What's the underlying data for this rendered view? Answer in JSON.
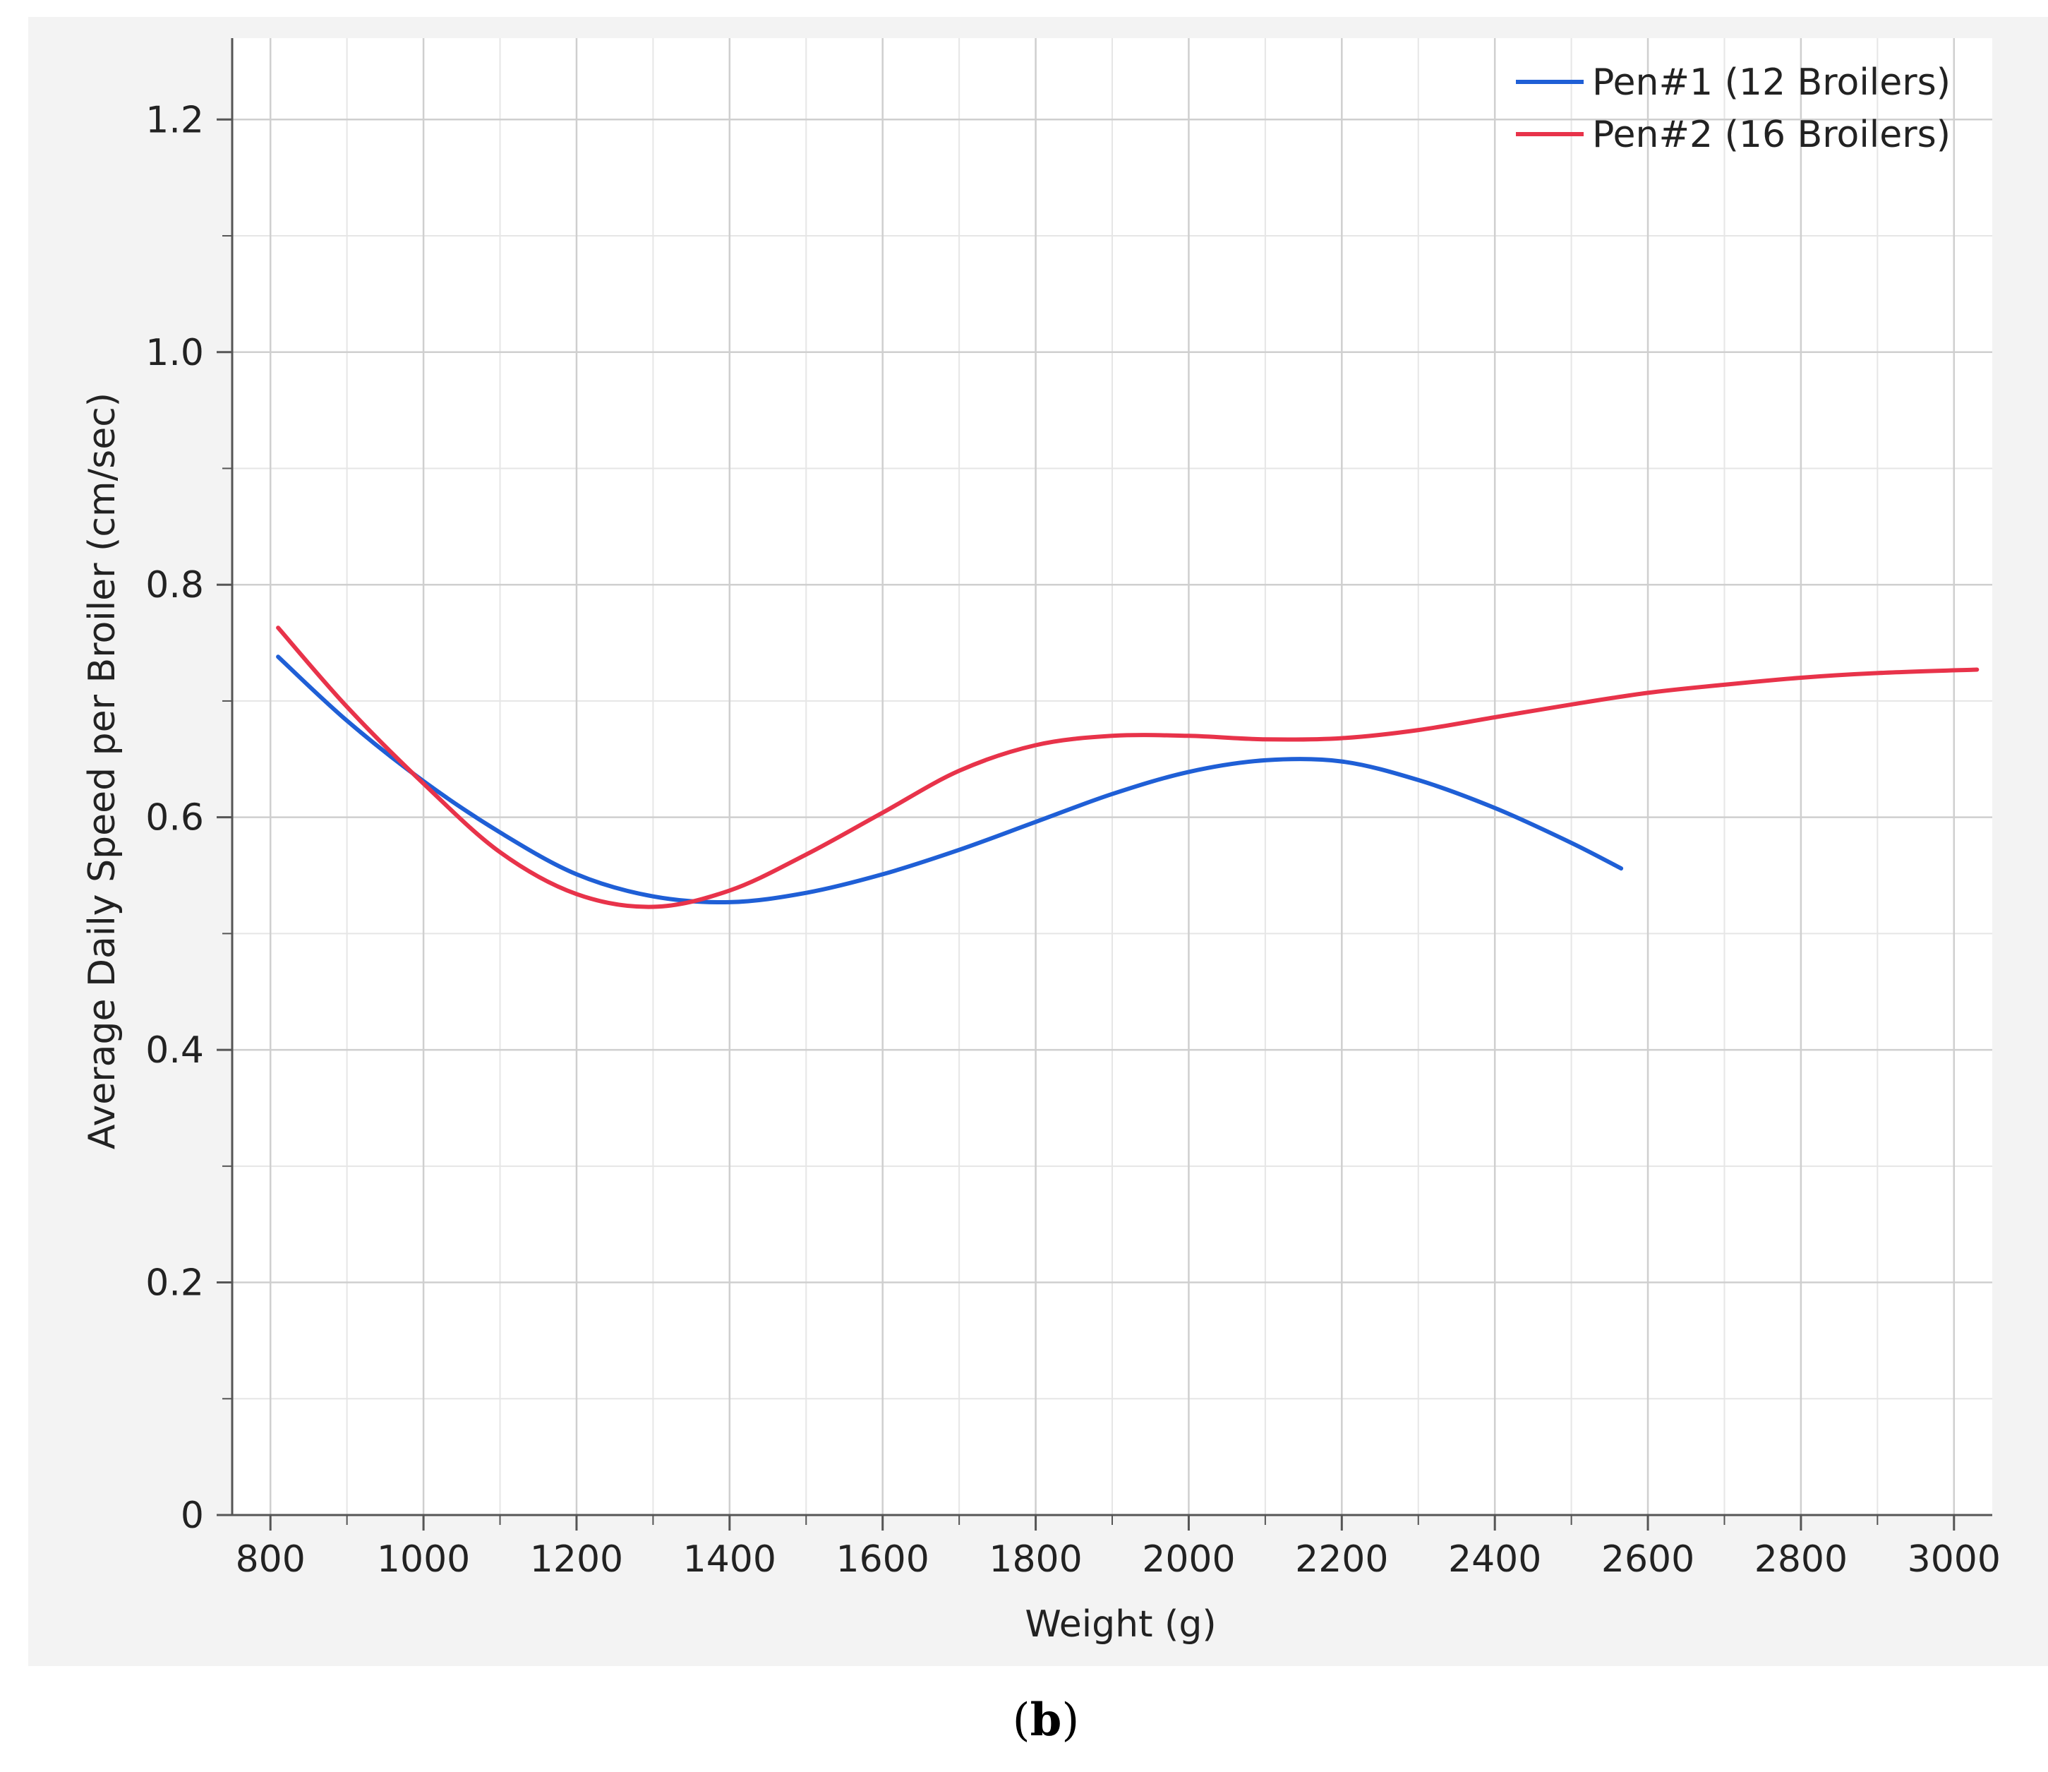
{
  "chart_data": {
    "type": "line",
    "xlabel": "Weight (g)",
    "ylabel": "Average Daily Speed per Broiler (cm/sec)",
    "xlim": [
      750,
      3050
    ],
    "ylim": [
      0,
      1.27
    ],
    "x_ticks": [
      800,
      1000,
      1200,
      1400,
      1600,
      1800,
      2000,
      2200,
      2400,
      2600,
      2800,
      3000
    ],
    "x_tick_labels": [
      "800",
      "1000",
      "1200",
      "1400",
      "1600",
      "1800",
      "2000",
      "2200",
      "2400",
      "2600",
      "2800",
      "3000"
    ],
    "x_minor_step": 100,
    "y_ticks": [
      0,
      0.2,
      0.4,
      0.6,
      0.8,
      1.0,
      1.2
    ],
    "y_tick_labels": [
      "0",
      "0.2",
      "0.4",
      "0.6",
      "0.8",
      "1.0",
      "1.2"
    ],
    "y_minor_step": 0.1,
    "grid": true,
    "legend_position": "top-right",
    "series": [
      {
        "name": "Pen#1 (12 Broilers)",
        "color": "#1f5fd6",
        "x": [
          810,
          900,
          1000,
          1100,
          1200,
          1300,
          1400,
          1500,
          1600,
          1700,
          1800,
          1900,
          2000,
          2100,
          2200,
          2300,
          2400,
          2500,
          2565
        ],
        "y": [
          0.738,
          0.683,
          0.631,
          0.587,
          0.551,
          0.532,
          0.527,
          0.535,
          0.551,
          0.572,
          0.596,
          0.62,
          0.639,
          0.649,
          0.648,
          0.632,
          0.608,
          0.578,
          0.556
        ]
      },
      {
        "name": "Pen#2 (16 Broilers)",
        "color": "#e8334a",
        "x": [
          810,
          900,
          1000,
          1100,
          1200,
          1300,
          1400,
          1500,
          1600,
          1700,
          1800,
          1900,
          2000,
          2100,
          2200,
          2300,
          2400,
          2500,
          2600,
          2700,
          2800,
          2900,
          3030
        ],
        "y": [
          0.763,
          0.695,
          0.629,
          0.57,
          0.534,
          0.523,
          0.537,
          0.568,
          0.604,
          0.64,
          0.662,
          0.67,
          0.67,
          0.667,
          0.668,
          0.675,
          0.686,
          0.697,
          0.707,
          0.714,
          0.72,
          0.724,
          0.727
        ]
      }
    ]
  },
  "panel_label": {
    "open": "(",
    "letter": "b",
    "close": ")"
  }
}
